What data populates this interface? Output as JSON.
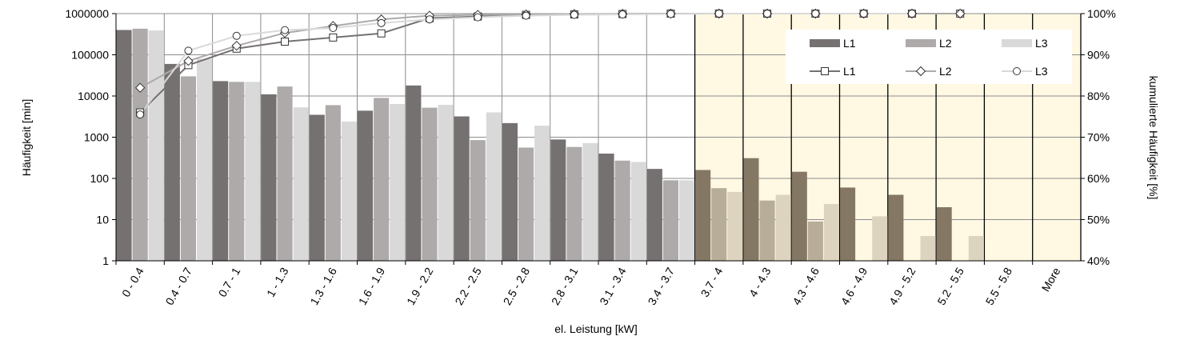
{
  "chart_data": {
    "type": "bar+line",
    "categories": [
      "0 - 0.4",
      "0.4 - 0.7",
      "0.7 - 1",
      "1 - 1.3",
      "1.3 - 1.6",
      "1.6 - 1.9",
      "1.9 - 2.2",
      "2.2 - 2.5",
      "2.5 - 2.8",
      "2.8 - 3.1",
      "3.1 - 3.4",
      "3.4 - 3.7",
      "3.7 - 4",
      "4 - 4.3",
      "4.3 - 4.6",
      "4.6 - 4.9",
      "4.9 - 5.2",
      "5.2 - 5.5",
      "5.5 - 5.8",
      "More"
    ],
    "xlabel": "el. Leistung [kW]",
    "ylabel": "Häufigkeit [min]",
    "y2label": "kumulierte Häufigkeit [%]",
    "y_scale": "log",
    "ylim": [
      1,
      1000000
    ],
    "y_ticks": [
      "1",
      "10",
      "100",
      "1000",
      "10000",
      "100000",
      "1000000"
    ],
    "y2lim": [
      40,
      100
    ],
    "y2_ticks": [
      "40%",
      "50%",
      "60%",
      "70%",
      "80%",
      "90%",
      "100%"
    ],
    "highlight_categories": [
      "3.7 - 4",
      "4 - 4.3",
      "4.3 - 4.6",
      "4.6 - 4.9",
      "4.9 - 5.2",
      "5.2 - 5.5",
      "5.5 - 5.8",
      "More"
    ],
    "highlight_color": "#fff8e3",
    "legend_position": "top-right",
    "bar_series": [
      {
        "name": "L1",
        "color": "#767171",
        "highlight_color": "#847764",
        "values": [
          400000,
          60000,
          23000,
          11000,
          3500,
          4400,
          18000,
          3200,
          2200,
          880,
          400,
          170,
          160,
          310,
          145,
          60,
          40,
          20,
          0,
          0
        ]
      },
      {
        "name": "L2",
        "color": "#aeaaaa",
        "highlight_color": "#b8ad99",
        "values": [
          430000,
          30000,
          22000,
          17000,
          6000,
          9000,
          5200,
          850,
          560,
          580,
          270,
          90,
          58,
          29,
          9,
          0,
          0,
          0,
          0,
          0
        ]
      },
      {
        "name": "L3",
        "color": "#d9d9d9",
        "highlight_color": "#ddd4c0",
        "values": [
          390000,
          80000,
          22000,
          5300,
          2400,
          6400,
          6100,
          4000,
          1900,
          720,
          250,
          90,
          47,
          40,
          24,
          12,
          4,
          4,
          0,
          0
        ]
      }
    ],
    "line_series": [
      {
        "name": "L1",
        "color": "#767171",
        "marker": "square",
        "values": [
          76,
          87.5,
          91.5,
          93.2,
          94.2,
          95.2,
          98.9,
          99.3,
          99.7,
          99.8,
          99.9,
          100,
          100,
          100,
          100,
          100,
          100,
          100,
          null,
          null
        ]
      },
      {
        "name": "L2",
        "color": "#aeaaaa",
        "marker": "diamond",
        "values": [
          82,
          88.5,
          92.2,
          95.3,
          97,
          98.6,
          99.5,
          99.7,
          99.8,
          99.9,
          99.95,
          100,
          100,
          100,
          100,
          100,
          100,
          100,
          null,
          null
        ]
      },
      {
        "name": "L3",
        "color": "#d9d9d9",
        "marker": "circle",
        "values": [
          75.5,
          91,
          94.6,
          96,
          96.5,
          97.7,
          98.6,
          99.1,
          99.5,
          99.7,
          99.8,
          99.9,
          100,
          100,
          100,
          100,
          100,
          null,
          null,
          null
        ]
      }
    ]
  }
}
